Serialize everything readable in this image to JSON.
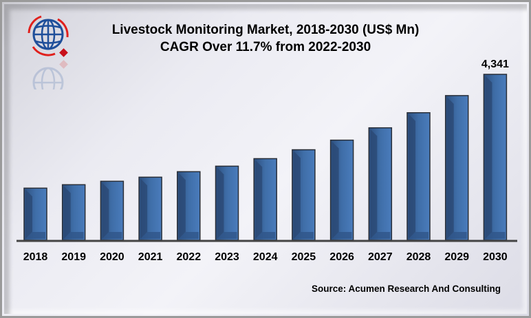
{
  "chart_data": {
    "type": "bar",
    "title": "Livestock Monitoring Market, 2018-2030 (US$ Mn)",
    "subtitle": "CAGR Over 11.7% from 2022-2030",
    "categories": [
      "2018",
      "2019",
      "2020",
      "2021",
      "2022",
      "2023",
      "2024",
      "2025",
      "2026",
      "2027",
      "2028",
      "2029",
      "2030"
    ],
    "values": [
      1363,
      1453,
      1543,
      1650,
      1794,
      1938,
      2135,
      2368,
      2619,
      2942,
      3337,
      3785,
      4341
    ],
    "data_labels": {
      "2030": "4,341"
    },
    "xlabel": "",
    "ylabel": "",
    "ylim": [
      0,
      4341
    ],
    "grid": false,
    "bar_color": "#3f6ea8"
  },
  "source": "Source: Acumen Research And Consulting",
  "logo": {
    "name": "globe-logo-icon",
    "colors": [
      "#1f4f9a",
      "#e0201c"
    ]
  }
}
